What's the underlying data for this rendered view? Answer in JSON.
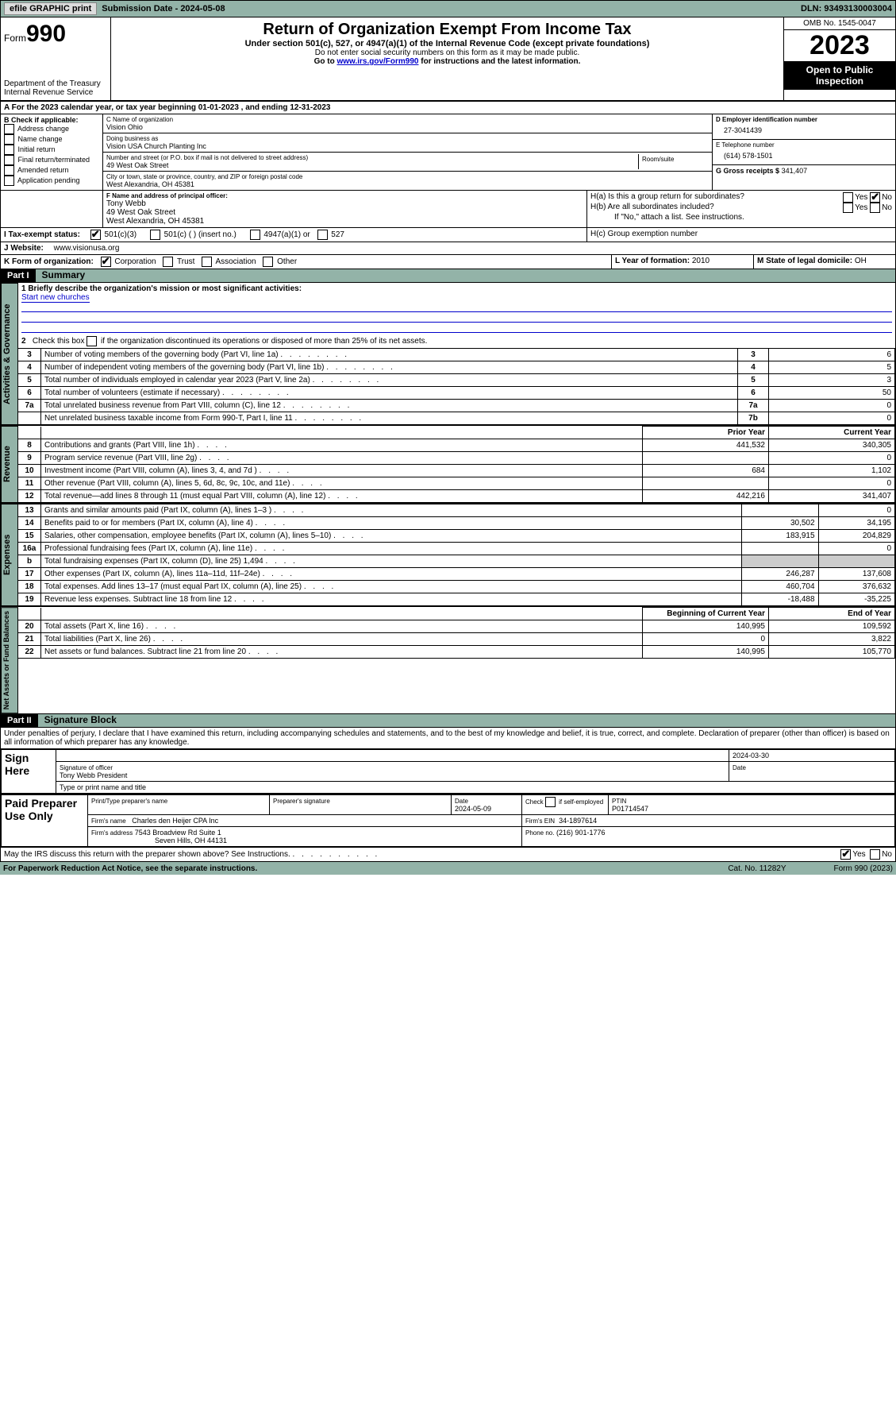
{
  "topbar": {
    "efile": "efile GRAPHIC print",
    "submission": "Submission Date - 2024-05-08",
    "dln": "DLN: 93493130003004"
  },
  "header": {
    "form_prefix": "Form",
    "form_number": "990",
    "dept": "Department of the Treasury Internal Revenue Service",
    "title": "Return of Organization Exempt From Income Tax",
    "subtitle": "Under section 501(c), 527, or 4947(a)(1) of the Internal Revenue Code (except private foundations)",
    "warn": "Do not enter social security numbers on this form as it may be made public.",
    "goto_prefix": "Go to ",
    "goto_link": "www.irs.gov/Form990",
    "goto_suffix": " for instructions and the latest information.",
    "omb": "OMB No. 1545-0047",
    "year": "2023",
    "inspection": "Open to Public Inspection"
  },
  "periodA": "A For the 2023 calendar year, or tax year beginning 01-01-2023    , and ending 12-31-2023",
  "sectionB": {
    "title": "B Check if applicable:",
    "items": [
      "Address change",
      "Name change",
      "Initial return",
      "Final return/terminated",
      "Amended return",
      "Application pending"
    ]
  },
  "sectionC": {
    "c_label": "C Name of organization",
    "c_value": "Vision Ohio",
    "dba_label": "Doing business as",
    "dba_value": "Vision USA Church Planting Inc",
    "street_label": "Number and street (or P.O. box if mail is not delivered to street address)",
    "street_value": "49 West Oak Street",
    "room_label": "Room/suite",
    "city_label": "City or town, state or province, country, and ZIP or foreign postal code",
    "city_value": "West Alexandria, OH   45381"
  },
  "sectionD": {
    "label": "D Employer identification number",
    "value": "27-3041439"
  },
  "sectionE": {
    "label": "E Telephone number",
    "value": "(614) 578-1501"
  },
  "sectionG": {
    "label": "G Gross receipts $",
    "value": "341,407"
  },
  "sectionF": {
    "label": "F  Name and address of principal officer:",
    "name": "Tony Webb",
    "street": "49 West Oak Street",
    "city": "West Alexandria, OH   45381"
  },
  "sectionH": {
    "a": "H(a)  Is this a group return for subordinates?",
    "b": "H(b)  Are all subordinates included?",
    "b_note": "If \"No,\" attach a list. See instructions.",
    "c": "H(c)  Group exemption number",
    "yes": "Yes",
    "no": "No"
  },
  "rowI": {
    "label": "I   Tax-exempt status:",
    "opts": [
      "501(c)(3)",
      "501(c) (  ) (insert no.)",
      "4947(a)(1) or",
      "527"
    ]
  },
  "rowJ": {
    "label": "J   Website:",
    "value": "www.visionusa.org"
  },
  "rowK": {
    "label": "K Form of organization:",
    "opts": [
      "Corporation",
      "Trust",
      "Association",
      "Other"
    ]
  },
  "rowL": {
    "label": "L Year of formation:",
    "value": "2010"
  },
  "rowM": {
    "label": "M State of legal domicile:",
    "value": "OH"
  },
  "part1": {
    "hdr": "Part I",
    "title": "Summary"
  },
  "summary": {
    "q1_label": "1  Briefly describe the organization's mission or most significant activities:",
    "q1_value": "Start new churches",
    "q2": "2    Check this box       if the organization discontinued its operations or disposed of more than 25% of its net assets.",
    "lines_gov": [
      {
        "n": "3",
        "t": "Number of voting members of the governing body (Part VI, line 1a)",
        "k": "3",
        "v": "6"
      },
      {
        "n": "4",
        "t": "Number of independent voting members of the governing body (Part VI, line 1b)",
        "k": "4",
        "v": "5"
      },
      {
        "n": "5",
        "t": "Total number of individuals employed in calendar year 2023 (Part V, line 2a)",
        "k": "5",
        "v": "3"
      },
      {
        "n": "6",
        "t": "Total number of volunteers (estimate if necessary)",
        "k": "6",
        "v": "50"
      },
      {
        "n": "7a",
        "t": "Total unrelated business revenue from Part VIII, column (C), line 12",
        "k": "7a",
        "v": "0"
      },
      {
        "n": "",
        "t": "Net unrelated business taxable income from Form 990-T, Part I, line 11",
        "k": "7b",
        "v": "0"
      }
    ],
    "col_prior": "Prior Year",
    "col_current": "Current Year",
    "lines_rev": [
      {
        "n": "8",
        "t": "Contributions and grants (Part VIII, line 1h)",
        "p": "441,532",
        "c": "340,305"
      },
      {
        "n": "9",
        "t": "Program service revenue (Part VIII, line 2g)",
        "p": "",
        "c": "0"
      },
      {
        "n": "10",
        "t": "Investment income (Part VIII, column (A), lines 3, 4, and 7d )",
        "p": "684",
        "c": "1,102"
      },
      {
        "n": "11",
        "t": "Other revenue (Part VIII, column (A), lines 5, 6d, 8c, 9c, 10c, and 11e)",
        "p": "",
        "c": "0"
      },
      {
        "n": "12",
        "t": "Total revenue—add lines 8 through 11 (must equal Part VIII, column (A), line 12)",
        "p": "442,216",
        "c": "341,407"
      }
    ],
    "lines_exp": [
      {
        "n": "13",
        "t": "Grants and similar amounts paid (Part IX, column (A), lines 1–3 )",
        "p": "",
        "c": "0"
      },
      {
        "n": "14",
        "t": "Benefits paid to or for members (Part IX, column (A), line 4)",
        "p": "30,502",
        "c": "34,195"
      },
      {
        "n": "15",
        "t": "Salaries, other compensation, employee benefits (Part IX, column (A), lines 5–10)",
        "p": "183,915",
        "c": "204,829"
      },
      {
        "n": "16a",
        "t": "Professional fundraising fees (Part IX, column (A), line 11e)",
        "p": "",
        "c": "0"
      },
      {
        "n": "b",
        "t": "Total fundraising expenses (Part IX, column (D), line 25) 1,494",
        "p": "SHADE",
        "c": "SHADE"
      },
      {
        "n": "17",
        "t": "Other expenses (Part IX, column (A), lines 11a–11d, 11f–24e)",
        "p": "246,287",
        "c": "137,608"
      },
      {
        "n": "18",
        "t": "Total expenses. Add lines 13–17 (must equal Part IX, column (A), line 25)",
        "p": "460,704",
        "c": "376,632"
      },
      {
        "n": "19",
        "t": "Revenue less expenses. Subtract line 18 from line 12",
        "p": "-18,488",
        "c": "-35,225"
      }
    ],
    "col_begin": "Beginning of Current Year",
    "col_end": "End of Year",
    "lines_net": [
      {
        "n": "20",
        "t": "Total assets (Part X, line 16)",
        "p": "140,995",
        "c": "109,592"
      },
      {
        "n": "21",
        "t": "Total liabilities (Part X, line 26)",
        "p": "0",
        "c": "3,822"
      },
      {
        "n": "22",
        "t": "Net assets or fund balances. Subtract line 21 from line 20",
        "p": "140,995",
        "c": "105,770"
      }
    ],
    "vtabs": {
      "gov": "Activities & Governance",
      "rev": "Revenue",
      "exp": "Expenses",
      "net": "Net Assets or Fund Balances"
    }
  },
  "part2": {
    "hdr": "Part II",
    "title": "Signature Block"
  },
  "perjury": "Under penalties of perjury, I declare that I have examined this return, including accompanying schedules and statements, and to the best of my knowledge and belief, it is true, correct, and complete. Declaration of preparer (other than officer) is based on all information of which preparer has any knowledge.",
  "sign": {
    "here": "Sign Here",
    "sig_officer": "Signature of officer",
    "sig_name": "Tony Webb President",
    "sig_type": "Type or print name and title",
    "date_label": "Date",
    "date": "2024-03-30"
  },
  "preparer": {
    "title": "Paid Preparer Use Only",
    "name_label": "Print/Type preparer's name",
    "sig_label": "Preparer's signature",
    "date_label": "Date",
    "date": "2024-05-09",
    "check_label": "Check         if self-employed",
    "ptin_label": "PTIN",
    "ptin": "P01714547",
    "firm_name_label": "Firm's name",
    "firm_name": "Charles den Heijer CPA Inc",
    "firm_ein_label": "Firm's EIN",
    "firm_ein": "34-1897614",
    "firm_addr_label": "Firm's address",
    "firm_addr1": "7543 Broadview Rd Suite 1",
    "firm_addr2": "Seven Hills, OH   44131",
    "phone_label": "Phone no.",
    "phone": "(216) 901-1776"
  },
  "discuss": {
    "text": "May the IRS discuss this return with the preparer shown above? See Instructions.",
    "yes": "Yes",
    "no": "No"
  },
  "footer": {
    "left": "For Paperwork Reduction Act Notice, see the separate instructions.",
    "mid": "Cat. No. 11282Y",
    "right": "Form 990 (2023)"
  }
}
